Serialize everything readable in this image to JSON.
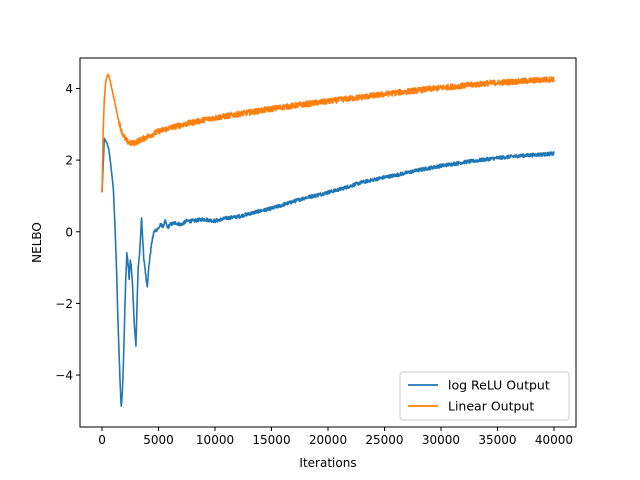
{
  "chart_data": {
    "type": "line",
    "title": "",
    "xlabel": "Iterations",
    "ylabel": "NELBO",
    "xlim": [
      -1950,
      41950
    ],
    "ylim": [
      -5.45,
      4.85
    ],
    "xticks": [
      0,
      5000,
      10000,
      15000,
      20000,
      25000,
      30000,
      35000,
      40000
    ],
    "xtick_labels": [
      "0",
      "5000",
      "10000",
      "15000",
      "20000",
      "25000",
      "30000",
      "35000",
      "40000"
    ],
    "yticks": [
      -4,
      -2,
      0,
      2,
      4
    ],
    "ytick_labels": [
      "−4",
      "−2",
      "0",
      "2",
      "4"
    ],
    "grid": false,
    "legend_position": "lower right",
    "series": [
      {
        "name": "log ReLU Output",
        "color": "#1f77b4",
        "noise": 0.05,
        "x": [
          0,
          200,
          400,
          600,
          800,
          1000,
          1100,
          1200,
          1300,
          1400,
          1500,
          1600,
          1700,
          1800,
          1900,
          2000,
          2100,
          2200,
          2300,
          2400,
          2500,
          2600,
          2700,
          2800,
          2900,
          3000,
          3100,
          3200,
          3300,
          3400,
          3500,
          3600,
          3700,
          3800,
          3900,
          4000,
          4200,
          4400,
          4600,
          4800,
          5000,
          5200,
          5400,
          5600,
          5800,
          6000,
          6500,
          7000,
          7500,
          8000,
          9000,
          10000,
          11000,
          12000,
          13000,
          14000,
          15000,
          16000,
          17000,
          18000,
          19000,
          20000,
          21000,
          22000,
          23000,
          24000,
          25000,
          26000,
          27000,
          28000,
          29000,
          30000,
          31000,
          32000,
          33000,
          34000,
          35000,
          36000,
          37000,
          38000,
          39000,
          40000
        ],
        "y": [
          1.1,
          2.6,
          2.5,
          2.3,
          1.8,
          1.2,
          0.5,
          -0.3,
          -1.2,
          -2.4,
          -3.3,
          -4.2,
          -4.9,
          -4.5,
          -3.6,
          -2.4,
          -1.3,
          -0.6,
          -0.9,
          -1.3,
          -0.8,
          -1.0,
          -1.5,
          -2.2,
          -2.8,
          -3.2,
          -2.0,
          -1.0,
          -0.7,
          -0.2,
          0.4,
          -0.2,
          -0.8,
          -1.0,
          -1.3,
          -1.5,
          -0.8,
          -0.3,
          0.0,
          0.05,
          0.1,
          0.2,
          0.15,
          0.3,
          0.1,
          0.2,
          0.25,
          0.2,
          0.3,
          0.3,
          0.35,
          0.3,
          0.38,
          0.42,
          0.5,
          0.58,
          0.65,
          0.75,
          0.85,
          0.95,
          1.02,
          1.1,
          1.18,
          1.28,
          1.38,
          1.45,
          1.52,
          1.58,
          1.65,
          1.72,
          1.78,
          1.84,
          1.89,
          1.94,
          1.98,
          2.02,
          2.06,
          2.09,
          2.12,
          2.14,
          2.16,
          2.18
        ]
      },
      {
        "name": "Linear Output",
        "color": "#ff7f0e",
        "noise": 0.08,
        "x": [
          0,
          100,
          200,
          300,
          400,
          500,
          600,
          700,
          800,
          1000,
          1200,
          1400,
          1600,
          1800,
          2000,
          2200,
          2400,
          2600,
          2800,
          3000,
          3200,
          3500,
          4000,
          4500,
          5000,
          6000,
          7000,
          8000,
          9000,
          10000,
          12000,
          14000,
          16000,
          18000,
          20000,
          22000,
          24000,
          26000,
          28000,
          30000,
          32000,
          34000,
          36000,
          38000,
          40000
        ],
        "y": [
          1.1,
          2.8,
          3.7,
          4.1,
          4.3,
          4.38,
          4.35,
          4.25,
          4.1,
          3.8,
          3.5,
          3.2,
          2.95,
          2.75,
          2.62,
          2.53,
          2.49,
          2.47,
          2.47,
          2.5,
          2.53,
          2.58,
          2.65,
          2.73,
          2.8,
          2.9,
          2.98,
          3.05,
          3.12,
          3.18,
          3.28,
          3.38,
          3.48,
          3.56,
          3.64,
          3.72,
          3.8,
          3.88,
          3.95,
          4.02,
          4.08,
          4.14,
          4.18,
          4.22,
          4.26
        ]
      }
    ]
  }
}
